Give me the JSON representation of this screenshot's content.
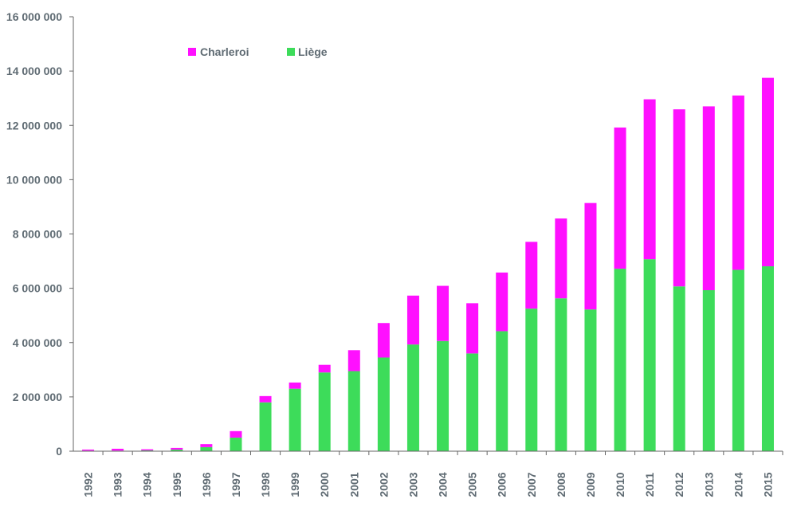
{
  "chart_data": {
    "type": "bar",
    "stacked": true,
    "title": "",
    "xlabel": "",
    "ylabel": "",
    "ylim": [
      0,
      16000000
    ],
    "yticks": [
      0,
      2000000,
      4000000,
      6000000,
      8000000,
      10000000,
      12000000,
      14000000,
      16000000
    ],
    "ytick_labels": [
      "0",
      "2 000 000",
      "4 000 000",
      "6 000 000",
      "8 000 000",
      "10 000 000",
      "12 000 000",
      "14 000 000",
      "16 000 000"
    ],
    "grid": false,
    "legend_position": "top-left",
    "categories": [
      "1992",
      "1993",
      "1994",
      "1995",
      "1996",
      "1997",
      "1998",
      "1999",
      "2000",
      "2001",
      "2002",
      "2003",
      "2004",
      "2005",
      "2006",
      "2007",
      "2008",
      "2009",
      "2010",
      "2011",
      "2012",
      "2013",
      "2014",
      "2015"
    ],
    "series": [
      {
        "name": "Liège",
        "color": "#3ddc5a",
        "values": [
          20000,
          20000,
          30000,
          60000,
          150000,
          500000,
          1800000,
          2300000,
          2900000,
          2950000,
          3450000,
          3930000,
          4060000,
          3600000,
          4420000,
          5250000,
          5630000,
          5220000,
          6720000,
          7070000,
          6070000,
          5930000,
          6680000,
          6810000
        ]
      },
      {
        "name": "Charleroi",
        "color": "#ff10ff",
        "values": [
          40000,
          70000,
          40000,
          60000,
          110000,
          240000,
          230000,
          230000,
          280000,
          770000,
          1270000,
          1800000,
          2030000,
          1850000,
          2160000,
          2460000,
          2940000,
          3920000,
          5200000,
          5890000,
          6520000,
          6770000,
          6420000,
          6940000
        ]
      }
    ]
  }
}
